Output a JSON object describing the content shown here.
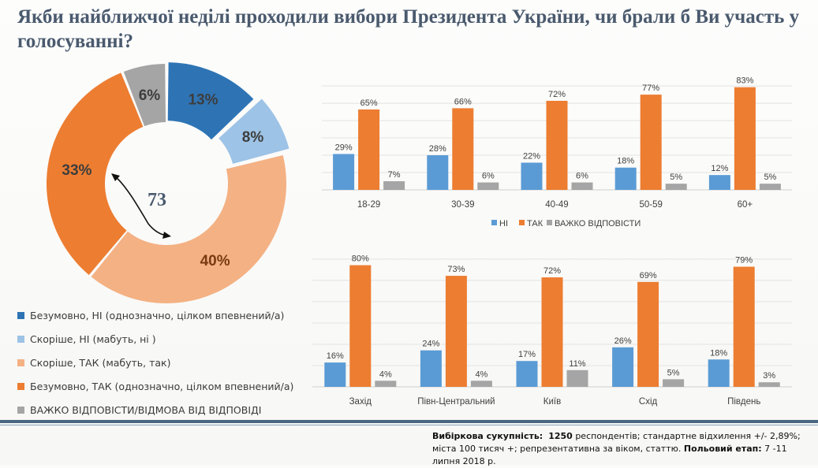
{
  "title": "Якби найближчої неділі проходили вибори Президента України, чи брали б Ви участь у голосуванні?",
  "colors": {
    "dark_blue": "#2e74b5",
    "light_blue": "#9dc3e6",
    "light_orange": "#f4b183",
    "orange": "#ed7d31",
    "gray": "#a5a5a5",
    "bar_blue": "#5b9bd5",
    "bar_orange": "#ed7d31",
    "bar_gray": "#a5a5a5"
  },
  "center_label": "73",
  "legend": [
    {
      "label": "Безумовно, НІ (однозначно, цілком впевнений/а)",
      "color": "#2e74b5"
    },
    {
      "label": "Скоріше, НІ (мабуть, ні )",
      "color": "#9dc3e6"
    },
    {
      "label": "Скоріше, ТАК (мабуть, так)",
      "color": "#f4b183"
    },
    {
      "label": "Безумовно, ТАК (однозначно, цілком впевнений/а)",
      "color": "#ed7d31"
    },
    {
      "label": "ВАЖКО ВІДПОВІСТИ/ВІДМОВА ВІД ВІДПОВІДІ",
      "color": "#a5a5a5"
    }
  ],
  "chart_data": [
    {
      "type": "pie",
      "variant": "donut",
      "slices": [
        {
          "label": "Безумовно, НІ (однозначно, цілком впевнений/а)",
          "value": 13,
          "text": "13%",
          "color": "#2e74b5"
        },
        {
          "label": "Скоріше, НІ (мабуть, ні )",
          "value": 8,
          "text": "8%",
          "color": "#9dc3e6"
        },
        {
          "label": "Скоріше, ТАК (мабуть, так)",
          "value": 40,
          "text": "40%",
          "color": "#f4b183"
        },
        {
          "label": "Безумовно, ТАК (однозначно, цілком впевнений/а)",
          "value": 33,
          "text": "33%",
          "color": "#ed7d31"
        },
        {
          "label": "ВАЖКО ВІДПОВІСТИ/ВІДМОВА ВІД ВІДПОВІДІ",
          "value": 6,
          "text": "6%",
          "color": "#a5a5a5"
        }
      ]
    },
    {
      "type": "bar",
      "categories": [
        "18-29",
        "30-39",
        "40-49",
        "50-59",
        "60+"
      ],
      "series": [
        {
          "name": "НІ",
          "color": "#5b9bd5",
          "values": [
            29,
            28,
            22,
            18,
            12
          ],
          "labels": [
            "29%",
            "28%",
            "22%",
            "18%",
            "12%"
          ]
        },
        {
          "name": "ТАК",
          "color": "#ed7d31",
          "values": [
            65,
            66,
            72,
            77,
            83
          ],
          "labels": [
            "65%",
            "66%",
            "72%",
            "77%",
            "83%"
          ]
        },
        {
          "name": "ВАЖКО ВІДПОВІСТИ",
          "color": "#a5a5a5",
          "values": [
            7,
            6,
            6,
            5,
            5
          ],
          "labels": [
            "7%",
            "6%",
            "6%",
            "5%",
            "5%"
          ]
        }
      ],
      "legend_position": "bottom"
    },
    {
      "type": "bar",
      "categories": [
        "Захід",
        "Півн-Центральний",
        "Київ",
        "Схід",
        "Південь"
      ],
      "series": [
        {
          "name": "НІ",
          "color": "#5b9bd5",
          "values": [
            16,
            24,
            17,
            26,
            18
          ],
          "labels": [
            "16%",
            "24%",
            "17%",
            "26%",
            "18%"
          ]
        },
        {
          "name": "ТАК",
          "color": "#ed7d31",
          "values": [
            80,
            73,
            72,
            69,
            79
          ],
          "labels": [
            "80%",
            "73%",
            "72%",
            "69%",
            "79%"
          ]
        },
        {
          "name": "ВАЖКО ВІДПОВІСТИ",
          "color": "#a5a5a5",
          "values": [
            4,
            4,
            11,
            5,
            3
          ],
          "labels": [
            "4%",
            "4%",
            "11%",
            "5%",
            "3%"
          ]
        }
      ]
    }
  ],
  "footnote": {
    "sample_label": "Вибіркова сукупність:",
    "sample_value": "1250",
    "text1": "респондентів; стандартне  відхилення +/- 2,89%; міста 100 тисяч +; репрезентативна за віком, статтю.",
    "stage_label": "Польовий етап:",
    "stage_value": "7 -11 липня 2018 р."
  }
}
